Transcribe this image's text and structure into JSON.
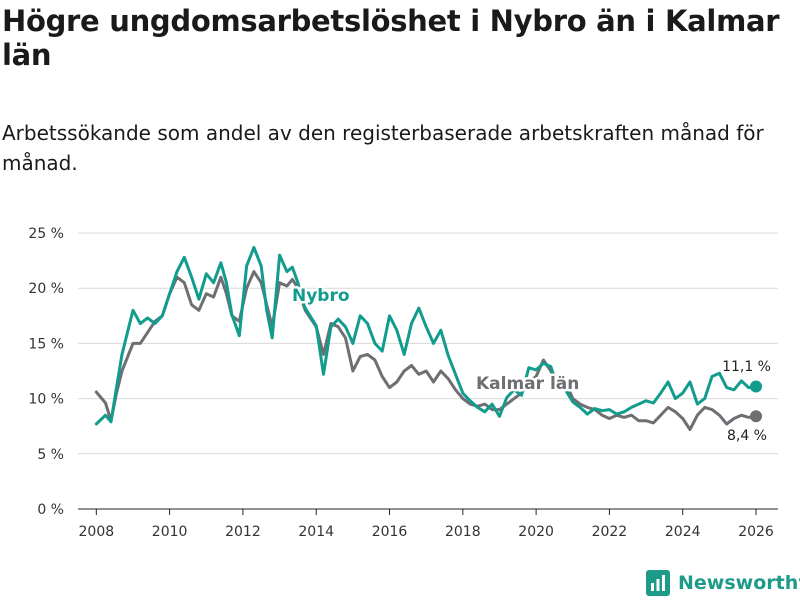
{
  "title": "Högre ungdomsarbetslöshet i Nybro än i Kalmar län",
  "subtitle": "Arbetssökande som andel av den registerbaserade arbetskraften månad för månad.",
  "brand": "Newsworthy",
  "colors": {
    "nybro": "#119c8e",
    "kalmar": "#6e6e73",
    "grid": "#d9d9d9",
    "text": "#333333"
  },
  "chart_data": {
    "type": "line",
    "title": "Högre ungdomsarbetslöshet i Nybro än i Kalmar län",
    "xlabel": "",
    "ylabel": "",
    "xlim": [
      2007.5,
      2026.6
    ],
    "ylim": [
      0,
      25
    ],
    "x_ticks": [
      2008,
      2010,
      2012,
      2014,
      2016,
      2018,
      2020,
      2022,
      2024,
      2026
    ],
    "x_tick_labels": [
      "2008",
      "2010",
      "2012",
      "2014",
      "2016",
      "2018",
      "2020",
      "2022",
      "2024",
      "2026"
    ],
    "y_ticks": [
      0,
      5,
      10,
      15,
      20,
      25
    ],
    "y_tick_labels": [
      "0 %",
      "5 %",
      "10 %",
      "15 %",
      "20 %",
      "25 %"
    ],
    "grid": true,
    "series": [
      {
        "name": "Nybro",
        "label": "Nybro",
        "end_label": "11,1 %",
        "x": [
          2008.0,
          2008.25,
          2008.4,
          2008.55,
          2008.7,
          2009.0,
          2009.2,
          2009.4,
          2009.6,
          2009.8,
          2010.0,
          2010.2,
          2010.4,
          2010.6,
          2010.8,
          2011.0,
          2011.2,
          2011.4,
          2011.55,
          2011.7,
          2011.9,
          2012.1,
          2012.3,
          2012.5,
          2012.65,
          2012.8,
          2013.0,
          2013.2,
          2013.35,
          2013.5,
          2013.7,
          2014.0,
          2014.2,
          2014.4,
          2014.6,
          2014.8,
          2015.0,
          2015.2,
          2015.4,
          2015.6,
          2015.8,
          2016.0,
          2016.2,
          2016.4,
          2016.6,
          2016.8,
          2017.0,
          2017.2,
          2017.4,
          2017.6,
          2017.8,
          2018.0,
          2018.2,
          2018.4,
          2018.6,
          2018.8,
          2019.0,
          2019.2,
          2019.4,
          2019.6,
          2019.8,
          2020.0,
          2020.2,
          2020.4,
          2020.6,
          2020.8,
          2021.0,
          2021.2,
          2021.4,
          2021.6,
          2021.8,
          2022.0,
          2022.2,
          2022.4,
          2022.6,
          2022.8,
          2023.0,
          2023.2,
          2023.4,
          2023.6,
          2023.8,
          2024.0,
          2024.2,
          2024.4,
          2024.6,
          2024.8,
          2025.0,
          2025.2,
          2025.4,
          2025.6,
          2025.8,
          2026.0
        ],
        "values": [
          7.7,
          8.5,
          7.9,
          11.0,
          14.0,
          18.0,
          16.8,
          17.3,
          16.8,
          17.5,
          19.5,
          21.5,
          22.8,
          21.0,
          19.0,
          21.3,
          20.5,
          22.3,
          20.5,
          17.6,
          15.7,
          22.0,
          23.7,
          22.0,
          18.0,
          15.5,
          23.0,
          21.5,
          21.9,
          20.5,
          18.2,
          16.6,
          12.2,
          16.5,
          17.2,
          16.5,
          15.0,
          17.5,
          16.8,
          15.0,
          14.3,
          17.5,
          16.2,
          14.0,
          16.8,
          18.2,
          16.5,
          15.0,
          16.2,
          13.9,
          12.2,
          10.5,
          9.8,
          9.2,
          8.8,
          9.5,
          8.4,
          10.1,
          10.8,
          10.3,
          12.8,
          12.6,
          13.2,
          12.9,
          11.0,
          10.8,
          9.7,
          9.2,
          8.6,
          9.1,
          8.9,
          9.0,
          8.6,
          8.8,
          9.2,
          9.5,
          9.8,
          9.6,
          10.5,
          11.5,
          10.0,
          10.5,
          11.5,
          9.5,
          10.0,
          12.0,
          12.3,
          11.0,
          10.8,
          11.6,
          11.0,
          11.1
        ]
      },
      {
        "name": "Kalmar län",
        "label": "Kalmar län",
        "end_label": "8,4 %",
        "x": [
          2008.0,
          2008.25,
          2008.4,
          2008.55,
          2008.7,
          2009.0,
          2009.2,
          2009.4,
          2009.6,
          2009.8,
          2010.0,
          2010.2,
          2010.4,
          2010.6,
          2010.8,
          2011.0,
          2011.2,
          2011.4,
          2011.55,
          2011.7,
          2011.9,
          2012.1,
          2012.3,
          2012.5,
          2012.65,
          2012.8,
          2013.0,
          2013.2,
          2013.35,
          2013.5,
          2013.7,
          2014.0,
          2014.2,
          2014.4,
          2014.6,
          2014.8,
          2015.0,
          2015.2,
          2015.4,
          2015.6,
          2015.8,
          2016.0,
          2016.2,
          2016.4,
          2016.6,
          2016.8,
          2017.0,
          2017.2,
          2017.4,
          2017.6,
          2017.8,
          2018.0,
          2018.2,
          2018.4,
          2018.6,
          2018.8,
          2019.0,
          2019.2,
          2019.4,
          2019.6,
          2019.8,
          2020.0,
          2020.2,
          2020.4,
          2020.6,
          2020.8,
          2021.0,
          2021.2,
          2021.4,
          2021.6,
          2021.8,
          2022.0,
          2022.2,
          2022.4,
          2022.6,
          2022.8,
          2023.0,
          2023.2,
          2023.4,
          2023.6,
          2023.8,
          2024.0,
          2024.2,
          2024.4,
          2024.6,
          2024.8,
          2025.0,
          2025.2,
          2025.4,
          2025.6,
          2025.8,
          2026.0
        ],
        "values": [
          10.6,
          9.6,
          8.0,
          10.5,
          12.5,
          15.0,
          15.0,
          16.0,
          17.0,
          17.5,
          19.5,
          21.0,
          20.5,
          18.5,
          18.0,
          19.5,
          19.2,
          21.0,
          19.5,
          17.5,
          17.0,
          20.0,
          21.5,
          20.5,
          18.5,
          16.5,
          20.5,
          20.2,
          20.8,
          20.0,
          18.0,
          16.5,
          14.0,
          16.8,
          16.5,
          15.5,
          12.5,
          13.8,
          14.0,
          13.5,
          12.0,
          11.0,
          11.5,
          12.5,
          13.0,
          12.2,
          12.5,
          11.5,
          12.5,
          11.8,
          10.8,
          10.0,
          9.5,
          9.3,
          9.5,
          9.0,
          9.0,
          9.5,
          10.0,
          10.5,
          11.5,
          12.0,
          13.5,
          12.5,
          11.0,
          11.5,
          10.0,
          9.5,
          9.2,
          9.0,
          8.5,
          8.2,
          8.5,
          8.3,
          8.5,
          8.0,
          8.0,
          7.8,
          8.5,
          9.2,
          8.8,
          8.2,
          7.2,
          8.5,
          9.2,
          9.0,
          8.5,
          7.7,
          8.2,
          8.5,
          8.3,
          8.4
        ]
      }
    ]
  }
}
